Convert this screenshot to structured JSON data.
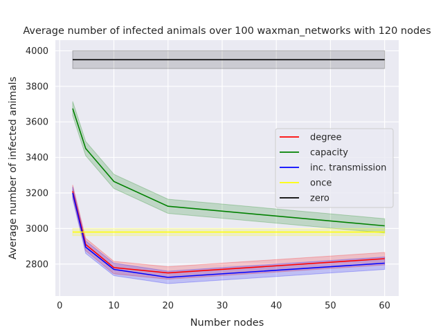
{
  "chart_data": {
    "type": "line",
    "title": "Average number of infected animals over 100 waxman_networks with 120 nodes",
    "xlabel": "Number nodes",
    "ylabel": "Average number of infected animals",
    "xlim": [
      -0.8,
      62.6
    ],
    "ylim": [
      2620,
      4060
    ],
    "xticks": [
      0,
      10,
      20,
      30,
      40,
      50,
      60
    ],
    "yticks": [
      2800,
      3000,
      3200,
      3400,
      3600,
      3800,
      4000
    ],
    "grid": true,
    "legend_position": "center-right",
    "x": [
      2.4,
      4.8,
      10,
      20,
      60
    ],
    "series": [
      {
        "name": "degree",
        "color": "#ff0000",
        "values": [
          3210,
          2910,
          2780,
          2750,
          2830
        ],
        "band": 35
      },
      {
        "name": "capacity",
        "color": "#008000",
        "values": [
          3675,
          3450,
          3265,
          3125,
          3015
        ],
        "band": 40
      },
      {
        "name": "inc. transmission",
        "color": "#0000ff",
        "values": [
          3200,
          2895,
          2770,
          2725,
          2805
        ],
        "band": 35
      },
      {
        "name": "once",
        "color": "#ffff00",
        "values": [
          2980,
          2980,
          2980,
          2980,
          2980
        ],
        "band": 20
      },
      {
        "name": "zero",
        "color": "#000000",
        "values": [
          3950,
          3950,
          3950,
          3950,
          3950
        ],
        "band": 50
      }
    ]
  }
}
